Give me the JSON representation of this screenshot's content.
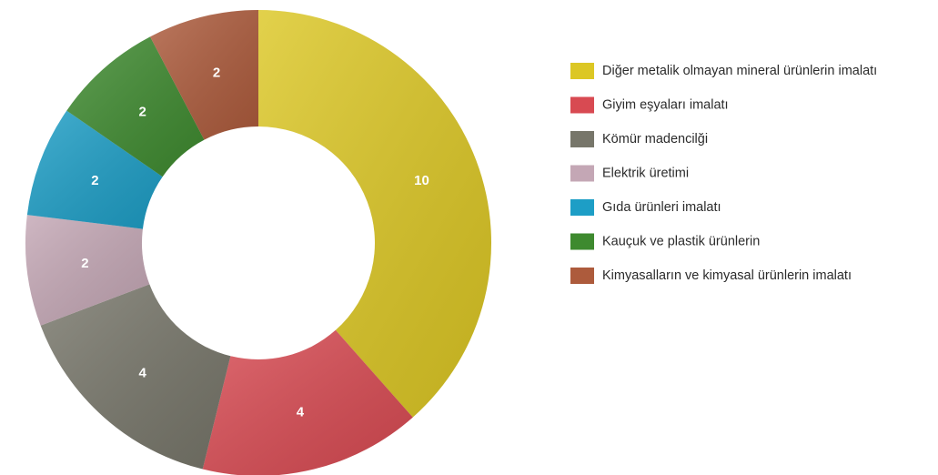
{
  "chart_data": {
    "type": "pie",
    "categories": [
      "Diğer metalik olmayan mineral ürünlerin imalatı",
      "Giyim eşyaları imalatı",
      "Kömür madencilği",
      "Elektrik üretimi",
      "Gıda ürünleri imalatı",
      "Kauçuk ve plastik ürünlerin",
      "Kimyasalların ve kimyasal ürünlerin imalatı"
    ],
    "values": [
      10,
      4,
      4,
      2,
      2,
      2,
      2
    ],
    "colors": [
      "#dcc724",
      "#d84a52",
      "#77766a",
      "#c4a7b5",
      "#1d9ec6",
      "#3e8a2f",
      "#ad5b3c"
    ],
    "legend": "right"
  }
}
